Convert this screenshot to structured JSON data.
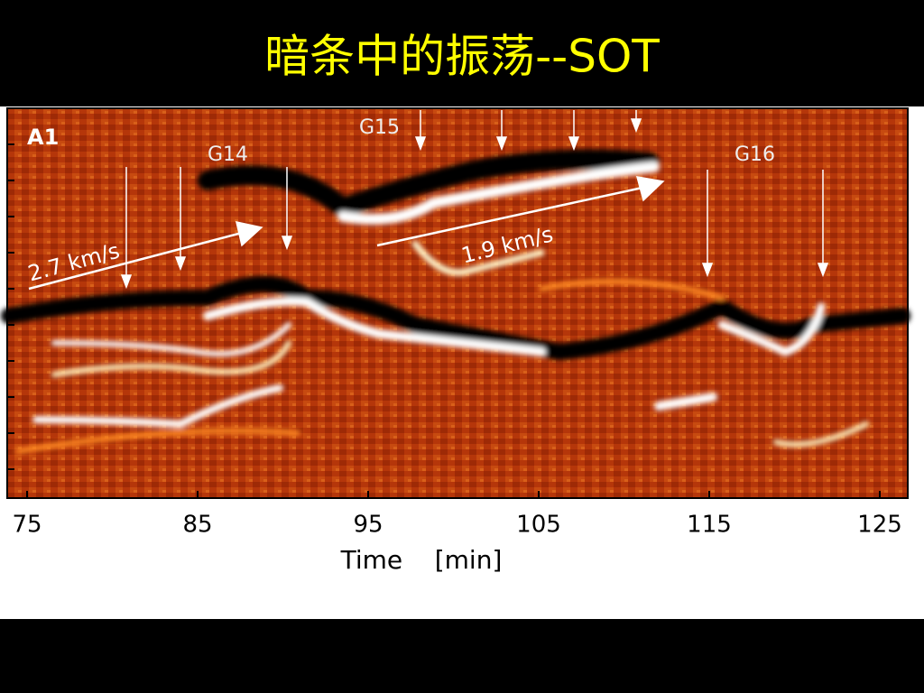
{
  "slide": {
    "title": "暗条中的振荡--SOT",
    "figure": {
      "panel_label": "A1",
      "group_labels": [
        "G14",
        "G15",
        "G16"
      ],
      "speed_labels": [
        "2.7 km/s",
        "1.9 km/s"
      ],
      "xticks": [
        75,
        85,
        95,
        105,
        115,
        125
      ],
      "xlabel": "Time    [min]"
    }
  }
}
